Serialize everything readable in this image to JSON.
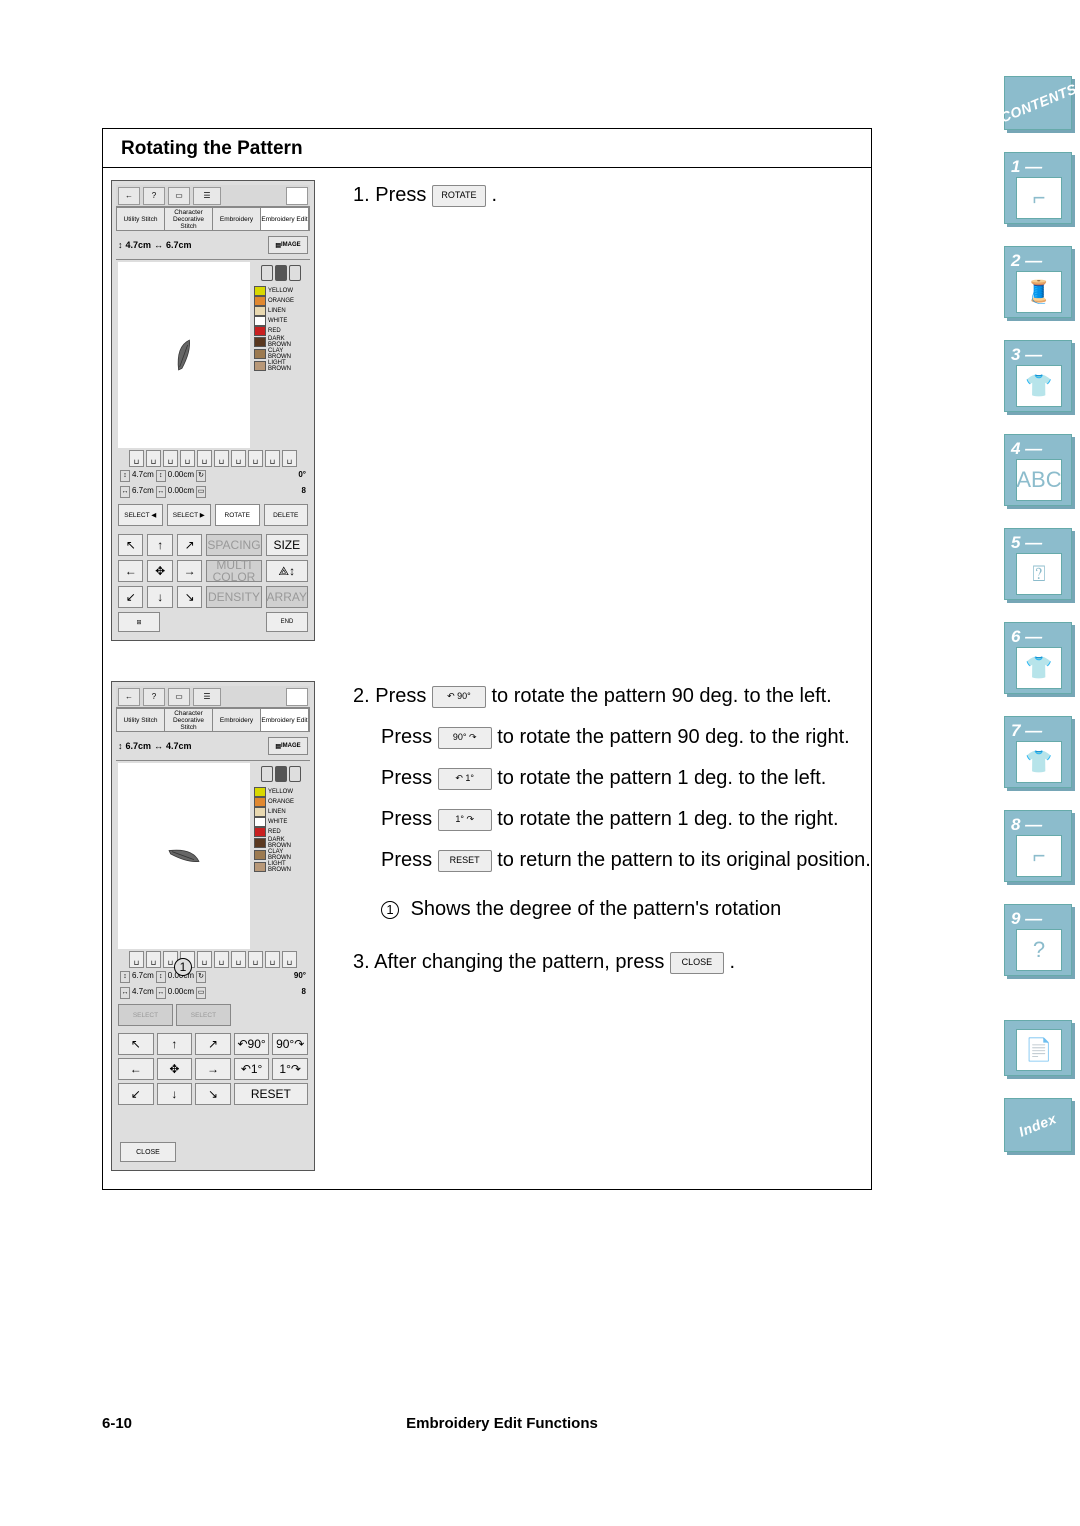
{
  "section_title": "Rotating the Pattern",
  "screen1": {
    "tabs": [
      "Utility\nStitch",
      "Character\nDecorative\nStitch",
      "Embroidery",
      "Embroidery\nEdit"
    ],
    "dim_h": "4.7cm",
    "dim_w": "6.7cm",
    "image_btn": "IMAGE",
    "colors": [
      "YELLOW",
      "ORANGE",
      "LINEN",
      "WHITE",
      "RED",
      "DARK\nBROWN",
      "CLAY\nBROWN",
      "LIGHT\nBROWN"
    ],
    "swatches": [
      "#d8d800",
      "#e08830",
      "#e8d8b0",
      "#ffffff",
      "#c82020",
      "#5a3820",
      "#9c7a50",
      "#b89878"
    ],
    "stat_h": "4.7cm",
    "stat_off_h": "0.00cm",
    "stat_rot": "0°",
    "stat_w": "6.7cm",
    "stat_off_w": "0.00cm",
    "stat_n": "8",
    "row1": [
      "SELECT\n◀",
      "SELECT\n▶",
      "ROTATE",
      "DELETE"
    ],
    "dirpad_labels": [
      "↖",
      "↑",
      "↗",
      "SPACING",
      "SIZE",
      "←",
      "✥",
      "→",
      "MULTI\nCOLOR",
      "⟁↕",
      "↙",
      "↓",
      "↘",
      "DENSITY",
      "ARRAY"
    ],
    "end_left": "⊞",
    "end_right": "END"
  },
  "screen2": {
    "dim_h": "6.7cm",
    "dim_w": "4.7cm",
    "stat_h": "6.7cm",
    "stat_off_h": "0.00cm",
    "stat_rot": "90°",
    "stat_w": "4.7cm",
    "stat_off_w": "0.00cm",
    "stat_n": "8",
    "select_l": "SELECT",
    "select_r": "SELECT",
    "rotpad": [
      "↖",
      "↑",
      "↗",
      "↶90°",
      "90°↷",
      "←",
      "✥",
      "→",
      "↶1°",
      "1°↷",
      "↙",
      "↓",
      "↘",
      "RESET",
      ""
    ],
    "close": "CLOSE"
  },
  "callout": "1",
  "step1_num": "1.",
  "step1_a": "Press",
  "step1_btn": "ROTATE",
  "step1_b": ".",
  "step2_num": "2.",
  "step2_a": "Press",
  "step2_btn1": "↶ 90°",
  "step2_b": "to rotate the pattern 90 deg. to the left.",
  "step2_c": "Press",
  "step2_btn2": "90° ↷",
  "step2_d": "to rotate the pattern 90 deg. to the right.",
  "step2_e": "Press",
  "step2_btn3": "↶ 1°",
  "step2_f": "to rotate the pattern 1 deg. to the left.",
  "step2_g": "Press",
  "step2_btn4": "1° ↷",
  "step2_h": "to rotate the pattern 1 deg. to the right.",
  "step2_i": "Press",
  "step2_btn5": "RESET",
  "step2_j": "to return the pattern to its original position.",
  "note_a": "Shows the degree of the pattern's rotation",
  "step3_num": "3.",
  "step3_a": "After changing the pattern, press",
  "step3_btn": "CLOSE",
  "step3_b": ".",
  "sidebar_nums": [
    "1 —",
    "2 —",
    "3 —",
    "4 —",
    "5 —",
    "6 —",
    "7 —",
    "8 —",
    "9 —"
  ],
  "sidebar_icons": [
    "⌐",
    "🧵",
    "👕",
    "ABC",
    "⍰",
    "👕",
    "👕",
    "⌐",
    "?"
  ],
  "contents": "CONTENTS",
  "index": "Index",
  "footer_page": "6-10",
  "footer_title": "Embroidery Edit Functions"
}
